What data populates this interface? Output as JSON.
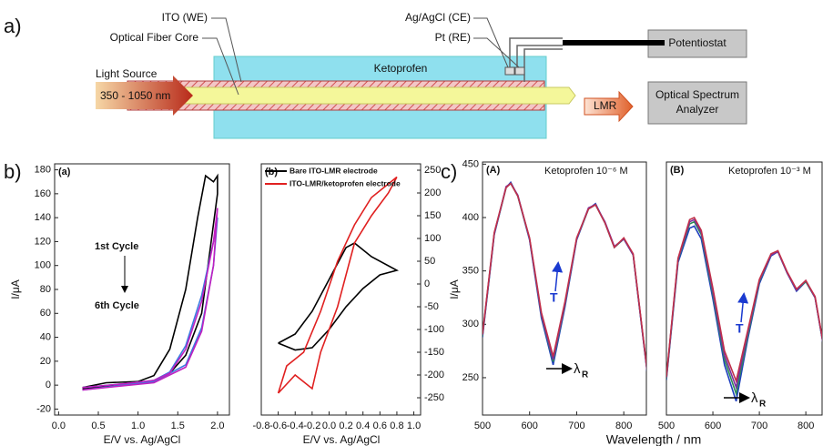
{
  "panel_labels": [
    "a)",
    "b)",
    "c)"
  ],
  "diagram": {
    "ito_label": "ITO (WE)",
    "fiber_label": "Optical Fiber Core",
    "ce_label": "Ag/AgCl (CE)",
    "re_label": "Pt (RE)",
    "potentiostat": "Potentiostat",
    "medium": "Ketoprofen",
    "light_source": "Light Source",
    "wavelength_range": "350 - 1050 nm",
    "lmr": "LMR",
    "analyzer_line1": "Optical Spectrum",
    "analyzer_line2": "Analyzer"
  },
  "chart_data": [
    {
      "type": "line",
      "panel": "(a)",
      "xlabel": "E/V vs. Ag/AgCl",
      "ylabel": "I/μA",
      "annotations": [
        "1st Cycle",
        "6th Cycle"
      ],
      "xlim": [
        -0.05,
        2.15
      ],
      "ylim": [
        -25,
        185
      ],
      "xticks": [
        {
          "value": 0,
          "label": "0.0"
        },
        0.5,
        {
          "value": 1,
          "label": "1.0"
        },
        1.5,
        {
          "value": 2,
          "label": "2.0"
        }
      ],
      "yticks": [
        -20,
        0,
        20,
        40,
        60,
        80,
        100,
        120,
        140,
        160,
        180
      ],
      "series": [
        {
          "color": "#000000",
          "x": [
            0.3,
            0.6,
            1.0,
            1.2,
            1.4,
            1.6,
            1.75,
            1.85,
            1.95,
            2.0,
            2.0,
            1.8,
            1.6,
            1.4,
            1.2,
            0.8,
            0.3
          ],
          "values": [
            -2,
            2,
            3,
            8,
            30,
            80,
            140,
            175,
            170,
            175,
            160,
            60,
            25,
            10,
            3,
            0,
            -3
          ]
        },
        {
          "color": "#3a7be0",
          "x": [
            0.3,
            0.8,
            1.2,
            1.4,
            1.6,
            1.8,
            1.95,
            2.0,
            1.95,
            1.8,
            1.6,
            1.2,
            0.3
          ],
          "values": [
            -2,
            1,
            4,
            11,
            33,
            75,
            120,
            140,
            100,
            48,
            17,
            3,
            -4
          ]
        },
        {
          "color": "#c020c0",
          "x": [
            0.3,
            0.8,
            1.2,
            1.4,
            1.6,
            1.8,
            1.95,
            2.0,
            1.95,
            1.8,
            1.6,
            1.2,
            0.3
          ],
          "values": [
            -2,
            1,
            4,
            10,
            30,
            70,
            120,
            148,
            100,
            45,
            15,
            2,
            -4
          ]
        }
      ]
    },
    {
      "type": "line",
      "panel": "(b)",
      "xlabel": "E/V vs. Ag/AgCl",
      "ylabel": "I/μA",
      "xlim": [
        -0.8,
        1.08
      ],
      "ylim": [
        -288,
        264
      ],
      "xticks": [
        -0.8,
        -0.6,
        -0.4,
        -0.2,
        {
          "value": 0,
          "label": "0.0"
        },
        0.2,
        0.4,
        0.6,
        0.8,
        {
          "value": 1,
          "label": "1.0"
        }
      ],
      "yticks": [
        -250,
        -200,
        -150,
        -100,
        -50,
        0,
        50,
        100,
        150,
        200,
        250
      ],
      "series": [
        {
          "name": "Bare ITO-LMR electrode",
          "color": "#000000",
          "x": [
            -0.6,
            -0.4,
            -0.2,
            0,
            0.2,
            0.3,
            0.5,
            0.8,
            0.6,
            0.4,
            0.2,
            0,
            -0.2,
            -0.4,
            -0.6
          ],
          "values": [
            -130,
            -110,
            -60,
            10,
            80,
            90,
            60,
            30,
            20,
            -10,
            -50,
            -100,
            -140,
            -145,
            -130
          ]
        },
        {
          "name": "ITO-LMR/ketoprofen electrode",
          "color": "#e02020",
          "x": [
            -0.6,
            -0.5,
            -0.3,
            -0.1,
            0.1,
            0.3,
            0.5,
            0.8,
            0.7,
            0.5,
            0.3,
            0.1,
            -0.1,
            -0.2,
            -0.4,
            -0.6
          ],
          "values": [
            -240,
            -180,
            -150,
            -60,
            50,
            130,
            190,
            235,
            200,
            150,
            90,
            -50,
            -150,
            -230,
            -200,
            -240
          ]
        }
      ]
    },
    {
      "type": "line",
      "panel": "(A)",
      "subtitle": "Ketoprofen 10⁻⁶ M",
      "xlabel": "Wavelength / nm",
      "annotations": [
        "T",
        "λ",
        "R"
      ],
      "xlim": [
        500,
        848
      ],
      "ylim": [
        215,
        452
      ],
      "xticks": [
        500,
        600,
        700,
        800
      ],
      "yticks": [
        250,
        300,
        350,
        400,
        450
      ],
      "x": [
        500,
        525,
        550,
        560,
        575,
        600,
        625,
        650,
        675,
        700,
        725,
        740,
        760,
        780,
        800,
        820,
        850
      ],
      "series": [
        {
          "color": "#1f3fbf",
          "values": [
            288,
            384,
            428,
            433,
            420,
            379,
            306,
            262,
            316,
            379,
            408,
            413,
            395,
            372,
            380,
            365,
            254
          ]
        },
        {
          "color": "#2e8b57",
          "values": [
            289,
            385,
            428,
            432,
            420,
            380,
            308,
            265,
            318,
            380,
            408,
            412,
            395,
            372,
            380,
            365,
            255
          ]
        },
        {
          "color": "#7a2ea0",
          "values": [
            290,
            385,
            429,
            432,
            421,
            380,
            309,
            267,
            319,
            380,
            409,
            412,
            396,
            373,
            380,
            365,
            255
          ]
        },
        {
          "color": "#c0304a",
          "values": [
            291,
            386,
            428,
            432,
            420,
            381,
            311,
            270,
            321,
            381,
            408,
            412,
            395,
            372,
            381,
            366,
            256
          ]
        }
      ]
    },
    {
      "type": "line",
      "panel": "(B)",
      "subtitle": "Ketoprofen 10⁻³ M",
      "annotations": [
        "T",
        "λ",
        "R"
      ],
      "xlim": [
        500,
        835
      ],
      "ylim": [
        215,
        452
      ],
      "xticks": [
        500,
        600,
        700,
        800
      ],
      "x": [
        500,
        525,
        550,
        560,
        575,
        600,
        625,
        650,
        675,
        700,
        725,
        740,
        760,
        780,
        800,
        820,
        850
      ],
      "series": [
        {
          "color": "#1f3fbf",
          "values": [
            248,
            358,
            390,
            392,
            380,
            324,
            262,
            228,
            286,
            338,
            364,
            368,
            348,
            331,
            340,
            325,
            249
          ]
        },
        {
          "color": "#2e8b57",
          "values": [
            249,
            360,
            394,
            396,
            384,
            328,
            267,
            235,
            289,
            340,
            365,
            368,
            348,
            332,
            340,
            325,
            250
          ]
        },
        {
          "color": "#7a2ea0",
          "values": [
            250,
            361,
            396,
            398,
            386,
            331,
            271,
            241,
            292,
            341,
            365,
            368,
            348,
            332,
            341,
            325,
            250
          ]
        },
        {
          "color": "#c0304a",
          "values": [
            251,
            362,
            398,
            400,
            388,
            334,
            275,
            247,
            294,
            342,
            366,
            369,
            349,
            333,
            341,
            326,
            251
          ]
        }
      ]
    }
  ]
}
